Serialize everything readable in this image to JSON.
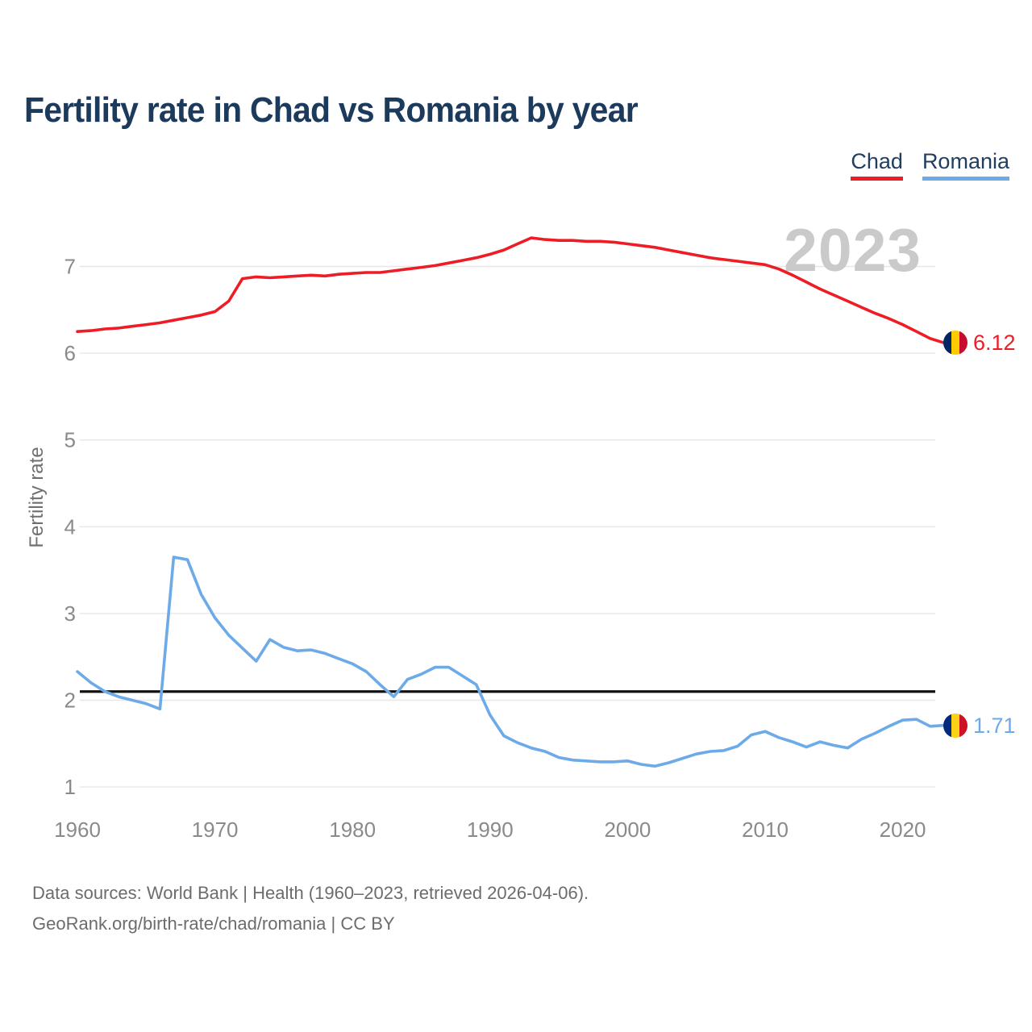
{
  "title": {
    "text": "Fertility rate in Chad vs Romania by year"
  },
  "watermark": {
    "text": "2023"
  },
  "legend": {
    "items": [
      {
        "label": "Chad",
        "color": "#ee1c25"
      },
      {
        "label": "Romania",
        "color": "#6caae8"
      }
    ]
  },
  "axes": {
    "y_label": "Fertility rate",
    "y_ticks": [
      7,
      6,
      5,
      4,
      3,
      2,
      1
    ],
    "x_ticks": [
      1960,
      1970,
      1980,
      1990,
      2000,
      2010,
      2020
    ]
  },
  "end_markers": {
    "chad": {
      "value": "6.12",
      "icon": "chad-flag-icon",
      "flag_colors": [
        "#002664",
        "#fecb00",
        "#c60c30"
      ]
    },
    "romania": {
      "value": "1.71",
      "icon": "romania-flag-icon",
      "flag_colors": [
        "#002b7f",
        "#fcd116",
        "#ce1126"
      ]
    }
  },
  "footer": {
    "line1": "Data sources: World Bank | Health (1960–2023, retrieved 2026-04-06).",
    "line2": "GeoRank.org/birth-rate/chad/romania | CC BY"
  },
  "chart_data": {
    "type": "line",
    "title": "Fertility rate in Chad vs Romania by year",
    "xlabel": "",
    "ylabel": "Fertility rate",
    "xlim": [
      1960,
      2023
    ],
    "ylim": [
      1,
      7.5
    ],
    "grid": "horizontal",
    "legend_position": "top-right",
    "x": [
      1960,
      1961,
      1962,
      1963,
      1964,
      1965,
      1966,
      1967,
      1968,
      1969,
      1970,
      1971,
      1972,
      1973,
      1974,
      1975,
      1976,
      1977,
      1978,
      1979,
      1980,
      1981,
      1982,
      1983,
      1984,
      1985,
      1986,
      1987,
      1988,
      1989,
      1990,
      1991,
      1992,
      1993,
      1994,
      1995,
      1996,
      1997,
      1998,
      1999,
      2000,
      2001,
      2002,
      2003,
      2004,
      2005,
      2006,
      2007,
      2008,
      2009,
      2010,
      2011,
      2012,
      2013,
      2014,
      2015,
      2016,
      2017,
      2018,
      2019,
      2020,
      2021,
      2022,
      2023
    ],
    "series": [
      {
        "name": "Chad",
        "color": "#ee1c25",
        "end_label": "6.12",
        "values": [
          6.25,
          6.26,
          6.28,
          6.29,
          6.31,
          6.33,
          6.35,
          6.38,
          6.41,
          6.44,
          6.48,
          6.6,
          6.86,
          6.88,
          6.87,
          6.88,
          6.89,
          6.9,
          6.89,
          6.91,
          6.92,
          6.93,
          6.93,
          6.95,
          6.97,
          6.99,
          7.01,
          7.04,
          7.07,
          7.1,
          7.14,
          7.19,
          7.26,
          7.33,
          7.31,
          7.3,
          7.3,
          7.29,
          7.29,
          7.28,
          7.26,
          7.24,
          7.22,
          7.19,
          7.16,
          7.13,
          7.1,
          7.08,
          7.06,
          7.04,
          7.02,
          6.97,
          6.9,
          6.82,
          6.74,
          6.67,
          6.6,
          6.53,
          6.46,
          6.4,
          6.33,
          6.25,
          6.17,
          6.12
        ]
      },
      {
        "name": "Romania",
        "color": "#6caae8",
        "end_label": "1.71",
        "values": [
          2.33,
          2.2,
          2.1,
          2.04,
          2.0,
          1.96,
          1.9,
          3.65,
          3.62,
          3.22,
          2.95,
          2.75,
          2.6,
          2.45,
          2.7,
          2.61,
          2.57,
          2.58,
          2.54,
          2.48,
          2.42,
          2.33,
          2.18,
          2.04,
          2.24,
          2.3,
          2.38,
          2.38,
          2.28,
          2.18,
          1.83,
          1.59,
          1.51,
          1.45,
          1.41,
          1.34,
          1.31,
          1.3,
          1.29,
          1.29,
          1.3,
          1.26,
          1.24,
          1.28,
          1.33,
          1.38,
          1.41,
          1.42,
          1.47,
          1.6,
          1.64,
          1.57,
          1.52,
          1.46,
          1.52,
          1.48,
          1.45,
          1.55,
          1.62,
          1.7,
          1.77,
          1.78,
          1.7,
          1.71
        ]
      }
    ],
    "reference_line": {
      "value": 2.1,
      "color": "#111111"
    }
  }
}
